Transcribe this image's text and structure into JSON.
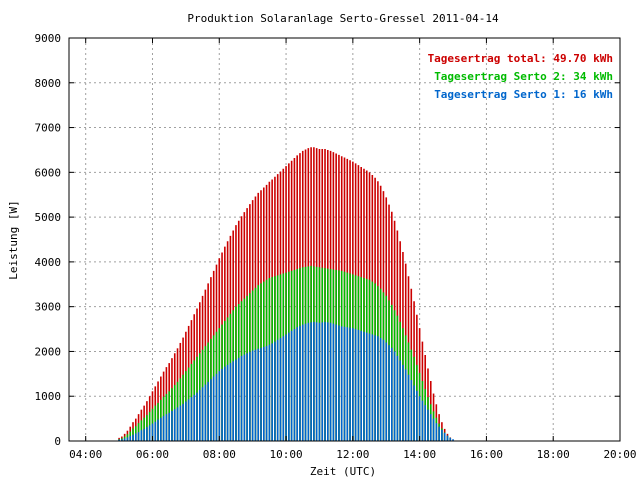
{
  "chart_data": {
    "type": "bar",
    "title": "Produktion Solaranlage Serto-Gressel 2011-04-14",
    "xlabel": "Zeit (UTC)",
    "ylabel": "Leistung [W]",
    "xlim": [
      "03:30",
      "20:00"
    ],
    "ylim": [
      0,
      9000
    ],
    "x_ticks": [
      "04:00",
      "06:00",
      "08:00",
      "10:00",
      "12:00",
      "14:00",
      "16:00",
      "18:00",
      "20:00"
    ],
    "y_ticks": [
      "0",
      "1000",
      "2000",
      "3000",
      "4000",
      "5000",
      "6000",
      "7000",
      "8000",
      "9000"
    ],
    "grid": true,
    "legend_position": "top-right",
    "legend": [
      "Tagesertrag total: 49.70 kWh",
      "Tagesertrag Serto 2: 34 kWh",
      "Tagesertrag Serto 1: 16 kWh"
    ],
    "colors": {
      "total": "#cc0000",
      "serto2": "#00bb00",
      "serto1": "#0066cc",
      "grid": "#a0a0a0"
    },
    "interval_minutes": 5,
    "x_start": "05:00",
    "series": [
      {
        "name": "Tagesertrag Serto 1",
        "color": "#0066cc",
        "values": [
          30,
          40,
          60,
          80,
          110,
          140,
          170,
          200,
          240,
          270,
          310,
          350,
          390,
          430,
          480,
          520,
          560,
          600,
          630,
          670,
          710,
          750,
          790,
          830,
          880,
          930,
          980,
          1030,
          1080,
          1140,
          1200,
          1260,
          1320,
          1380,
          1440,
          1500,
          1560,
          1610,
          1660,
          1700,
          1740,
          1780,
          1820,
          1860,
          1900,
          1930,
          1960,
          1990,
          2020,
          2040,
          2060,
          2080,
          2100,
          2120,
          2150,
          2180,
          2220,
          2260,
          2300,
          2340,
          2380,
          2420,
          2460,
          2500,
          2540,
          2570,
          2600,
          2620,
          2640,
          2650,
          2660,
          2650,
          2640,
          2650,
          2660,
          2650,
          2640,
          2620,
          2600,
          2580,
          2560,
          2550,
          2540,
          2530,
          2520,
          2500,
          2480,
          2460,
          2440,
          2420,
          2400,
          2380,
          2360,
          2340,
          2300,
          2260,
          2200,
          2140,
          2080,
          2000,
          1900,
          1800,
          1700,
          1600,
          1480,
          1360,
          1240,
          1120,
          1000,
          900,
          800,
          700,
          600,
          500,
          400,
          320,
          250,
          180,
          120,
          70,
          40
        ]
      },
      {
        "name": "Tagesertrag Serto 2",
        "color": "#00bb00",
        "values": [
          40,
          60,
          100,
          150,
          210,
          280,
          330,
          400,
          460,
          520,
          580,
          650,
          720,
          790,
          850,
          920,
          990,
          1050,
          1110,
          1180,
          1250,
          1320,
          1400,
          1480,
          1560,
          1640,
          1720,
          1800,
          1880,
          1960,
          2040,
          2120,
          2200,
          2280,
          2360,
          2440,
          2520,
          2600,
          2680,
          2760,
          2840,
          2920,
          3000,
          3060,
          3120,
          3180,
          3240,
          3300,
          3360,
          3420,
          3480,
          3520,
          3560,
          3600,
          3640,
          3660,
          3680,
          3700,
          3720,
          3740,
          3760,
          3780,
          3800,
          3820,
          3840,
          3860,
          3880,
          3890,
          3900,
          3910,
          3900,
          3890,
          3880,
          3870,
          3860,
          3850,
          3840,
          3830,
          3820,
          3810,
          3800,
          3780,
          3760,
          3740,
          3720,
          3700,
          3680,
          3660,
          3640,
          3620,
          3600,
          3560,
          3520,
          3460,
          3400,
          3320,
          3240,
          3140,
          3040,
          2920,
          2800,
          2660,
          2520,
          2360,
          2200,
          2040,
          1880,
          1700,
          1520,
          1340,
          1160,
          980,
          820,
          660,
          520,
          390,
          280,
          190,
          120,
          70
        ]
      },
      {
        "name": "Tagesertrag total",
        "color": "#cc0000",
        "values": [
          70,
          100,
          160,
          230,
          320,
          420,
          500,
          600,
          700,
          790,
          890,
          1000,
          1110,
          1220,
          1330,
          1440,
          1550,
          1650,
          1740,
          1850,
          1960,
          2070,
          2190,
          2310,
          2440,
          2570,
          2700,
          2830,
          2960,
          3100,
          3240,
          3380,
          3520,
          3660,
          3800,
          3940,
          4080,
          4210,
          4340,
          4460,
          4580,
          4700,
          4820,
          4920,
          5020,
          5110,
          5200,
          5290,
          5380,
          5460,
          5540,
          5600,
          5660,
          5720,
          5790,
          5840,
          5900,
          5960,
          6020,
          6080,
          6140,
          6200,
          6260,
          6320,
          6380,
          6430,
          6480,
          6510,
          6540,
          6560,
          6560,
          6540,
          6520,
          6520,
          6520,
          6500,
          6480,
          6450,
          6420,
          6390,
          6360,
          6330,
          6300,
          6270,
          6240,
          6200,
          6160,
          6120,
          6080,
          6040,
          6000,
          5940,
          5880,
          5800,
          5700,
          5580,
          5440,
          5280,
          5120,
          4920,
          4700,
          4460,
          4220,
          3960,
          3680,
          3400,
          3120,
          2820,
          2520,
          2220,
          1920,
          1620,
          1340,
          1060,
          820,
          600,
          420,
          270,
          160,
          80
        ]
      }
    ]
  }
}
